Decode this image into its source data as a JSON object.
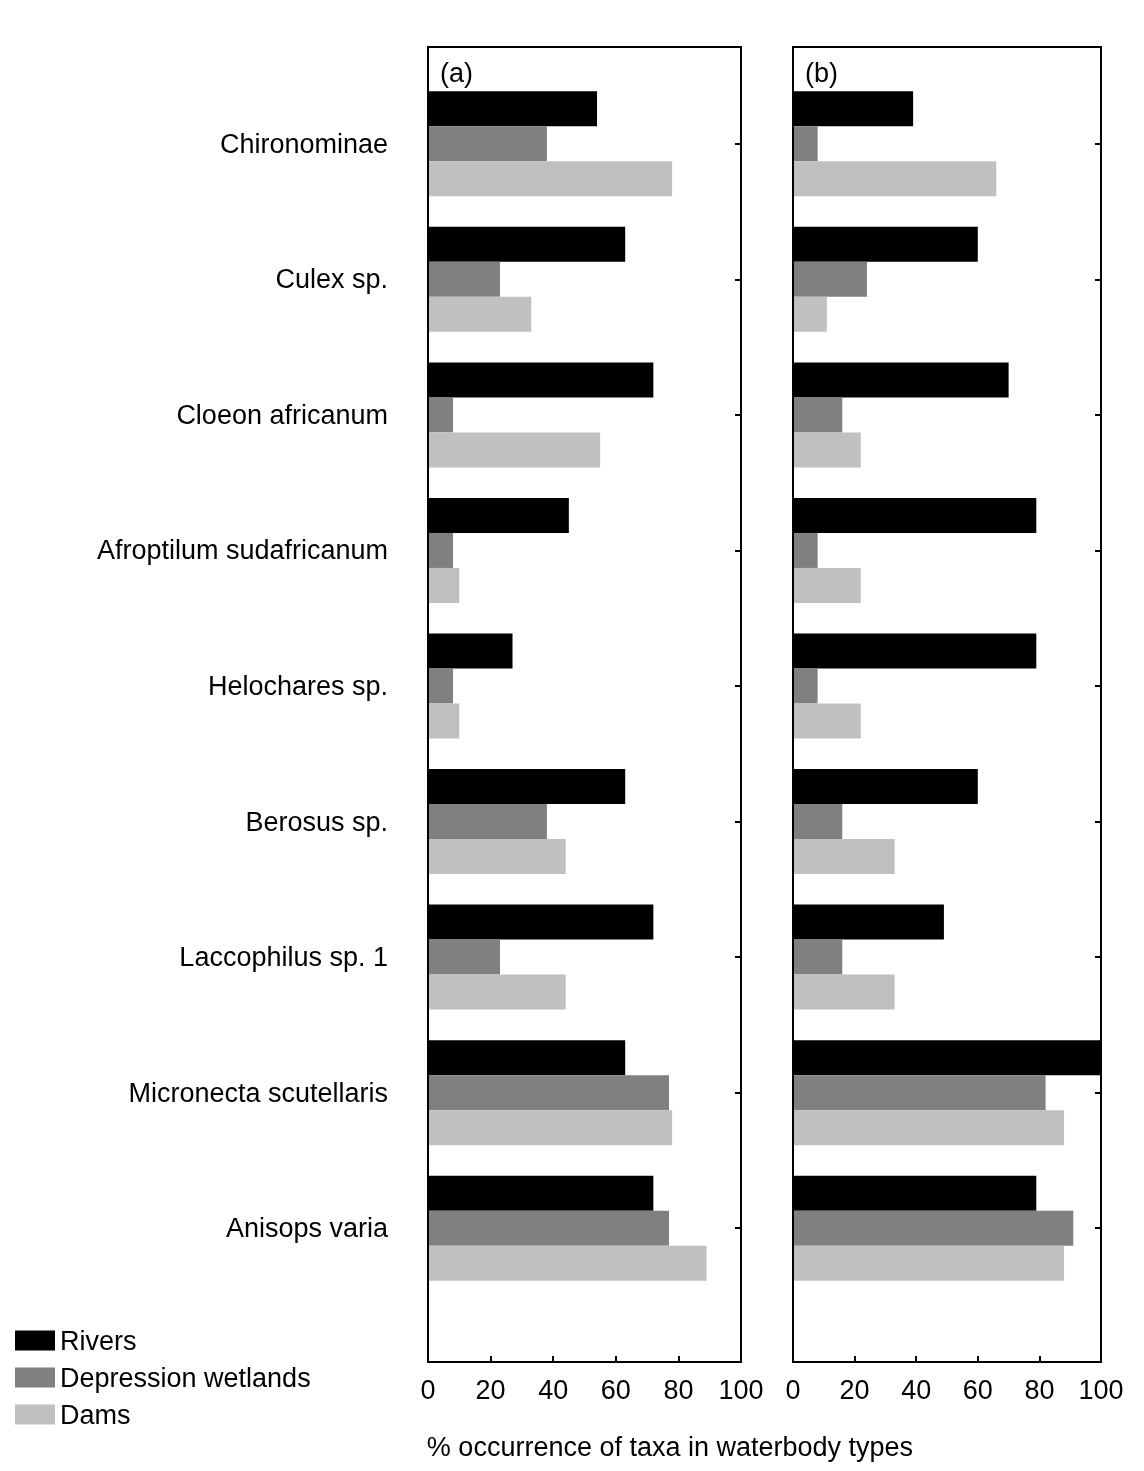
{
  "chart_data": [
    {
      "type": "bar",
      "orientation": "horizontal",
      "annotations": [
        "(a)"
      ],
      "xlabel": "% occurrence of taxa in waterbody types",
      "categories": [
        "Chironominae",
        "Culex sp.",
        "Cloeon africanum",
        "Afroptilum sudafricanum",
        "Helochares sp.",
        "Berosus sp.",
        "Laccophilus sp. 1",
        "Micronecta scutellaris",
        "Anisops varia"
      ],
      "series": [
        {
          "name": "Rivers",
          "color": "#000000",
          "values": [
            54,
            63,
            72,
            45,
            27,
            63,
            72,
            63,
            72
          ]
        },
        {
          "name": "Depression wetlands",
          "color": "#808080",
          "values": [
            38,
            23,
            8,
            8,
            8,
            38,
            23,
            77,
            77
          ]
        },
        {
          "name": "Dams",
          "color": "#c0c0c0",
          "values": [
            78,
            33,
            55,
            10,
            10,
            44,
            44,
            78,
            89
          ]
        }
      ],
      "xlim": [
        0,
        100
      ],
      "xticks": [
        0,
        20,
        40,
        60,
        80,
        100
      ],
      "legend": "bottom left",
      "grid": false
    },
    {
      "type": "bar",
      "orientation": "horizontal",
      "annotations": [
        "(b)"
      ],
      "tick_labels": "x",
      "categories": [
        null,
        null,
        null,
        null,
        null,
        null,
        null,
        null,
        null
      ],
      "series": [
        {
          "color": "#000000",
          "values": [
            39,
            60,
            70,
            79,
            79,
            60,
            49,
            100,
            79
          ]
        },
        {
          "color": "#808080",
          "values": [
            8,
            24,
            16,
            8,
            8,
            16,
            16,
            82,
            91
          ]
        },
        {
          "color": "#c0c0c0",
          "values": [
            66,
            11,
            22,
            22,
            22,
            33,
            33,
            88,
            88
          ]
        }
      ],
      "xlim": [
        0,
        100
      ],
      "xticks": [
        0,
        20,
        40,
        60,
        80,
        100
      ],
      "legend": false,
      "grid": false
    }
  ]
}
